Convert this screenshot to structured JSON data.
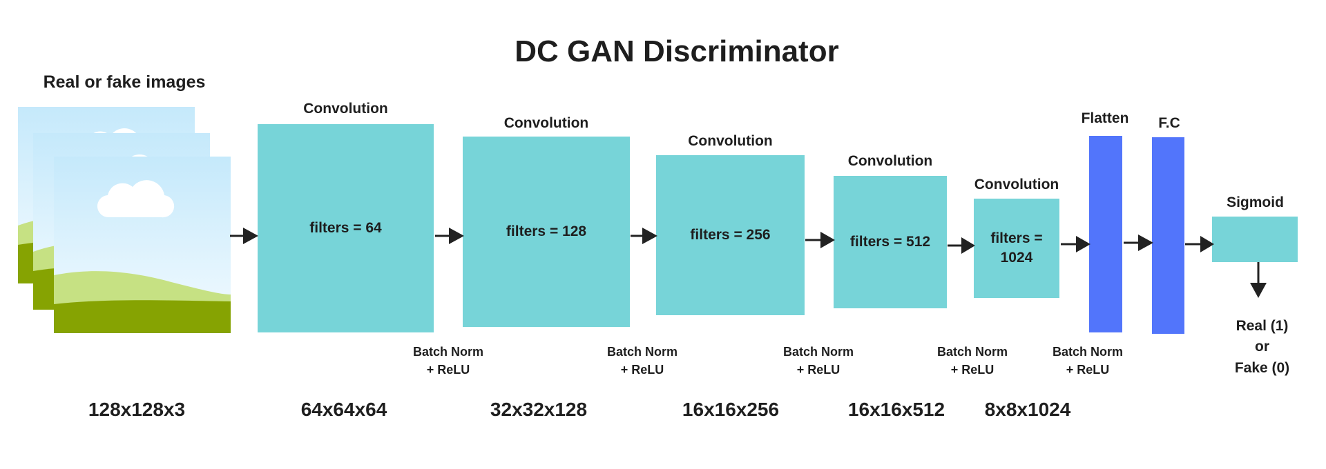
{
  "title": "DC GAN Discriminator",
  "input": {
    "label": "Real or fake images",
    "size": "128x128x3"
  },
  "layers": [
    {
      "type": "Convolution",
      "text": "filters = 64",
      "size": "64x64x64",
      "norm": [
        "Batch Norm",
        "+ ReLU"
      ]
    },
    {
      "type": "Convolution",
      "text": "filters = 128",
      "size": "32x32x128",
      "norm": [
        "Batch Norm",
        "+ ReLU"
      ]
    },
    {
      "type": "Convolution",
      "text": "filters = 256",
      "size": "16x16x256",
      "norm": [
        "Batch Norm",
        "+ ReLU"
      ]
    },
    {
      "type": "Convolution",
      "text": "filters = 512",
      "size": "16x16x512",
      "norm": [
        "Batch Norm",
        "+ ReLU"
      ]
    },
    {
      "type": "Convolution",
      "text_lines": [
        "filters =",
        "1024"
      ],
      "size": "8x8x1024",
      "norm": [
        "Batch Norm",
        "+ ReLU"
      ]
    }
  ],
  "flatten": {
    "label": "Flatten",
    "norm": [
      "Batch Norm",
      "+ ReLU"
    ]
  },
  "fc": {
    "label": "F.C"
  },
  "sigmoid": {
    "label": "Sigmoid"
  },
  "output": [
    "Real (1)",
    "or",
    "Fake (0)"
  ],
  "colors": {
    "conv": "#77d4d8",
    "dense": "#5275fb",
    "sky": "#c5e9fb",
    "hill_light": "#c6e183",
    "hill_dark": "#86a302",
    "arrow": "#222222"
  }
}
